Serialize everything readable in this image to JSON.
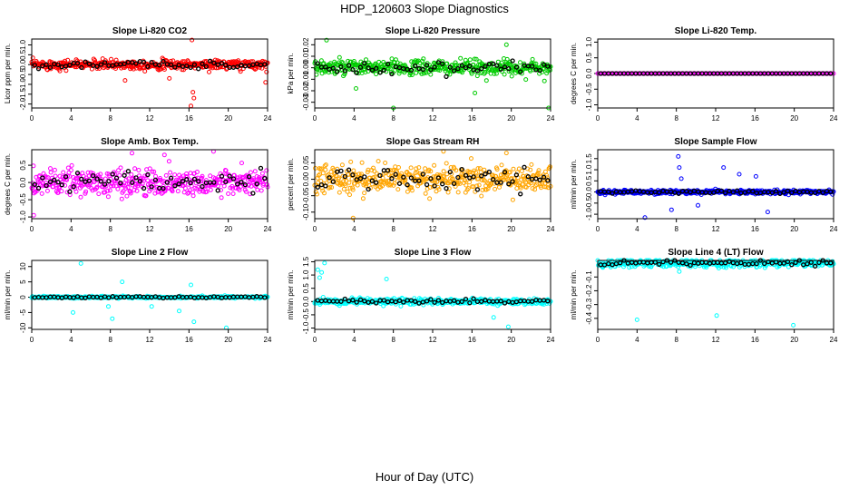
{
  "page": {
    "title": "HDP_120603  Slope Diagnostics",
    "xlabel": "Hour of Day (UTC)"
  },
  "chart_data": [
    {
      "type": "scatter",
      "title": "Slope Li-820 CO2",
      "ylabel": "Licor ppm per min.",
      "color": "#ff0000",
      "xlim": [
        0,
        24
      ],
      "ylim": [
        -2.2,
        1.3
      ],
      "yticks": [
        "-2.0",
        "-1.5",
        "-1.0",
        "-0.5",
        "0.0",
        "0.5",
        "1.0"
      ],
      "xticks": [
        "0",
        "4",
        "8",
        "12",
        "16",
        "20",
        "24"
      ],
      "spread": 0.22,
      "outliers": [
        [
          16.2,
          -2.1
        ],
        [
          16.3,
          1.25
        ],
        [
          16.5,
          -1.7
        ],
        [
          16.4,
          -1.4
        ],
        [
          9.5,
          -0.8
        ],
        [
          14,
          -0.7
        ],
        [
          23.8,
          -0.9
        ]
      ]
    },
    {
      "type": "scatter",
      "title": "Slope Li-820 Pressure",
      "ylabel": "kPa per min.",
      "color": "#00cc00",
      "xlim": [
        0,
        24
      ],
      "ylim": [
        -0.035,
        0.025
      ],
      "yticks": [
        "-0.03",
        "-0.02",
        "-0.01",
        "0.00",
        "0.01",
        "0.02"
      ],
      "xticks": [
        "0",
        "4",
        "8",
        "12",
        "16",
        "20",
        "24"
      ],
      "spread": 0.006,
      "outliers": [
        [
          1.2,
          0.024
        ],
        [
          16.3,
          -0.022
        ],
        [
          8,
          -0.035
        ],
        [
          23.8,
          -0.036
        ],
        [
          4.2,
          -0.018
        ],
        [
          19.5,
          0.02
        ]
      ]
    },
    {
      "type": "scatter",
      "title": "Slope Li-820 Temp.",
      "ylabel": "degrees C per min.",
      "color": "#ff00ff",
      "xlim": [
        0,
        24
      ],
      "ylim": [
        -1.1,
        1.1
      ],
      "yticks": [
        "-1.0",
        "-0.5",
        "0.0",
        "0.5",
        "1.0"
      ],
      "xticks": [
        "0",
        "4",
        "8",
        "12",
        "16",
        "20",
        "24"
      ],
      "spread": 0.0,
      "outliers": []
    },
    {
      "type": "scatter",
      "title": "Slope Amb. Box Temp.",
      "ylabel": "degrees C per min.",
      "color": "#ff00ff",
      "xlim": [
        0,
        24
      ],
      "ylim": [
        -1.05,
        0.95
      ],
      "yticks": [
        "-1.0",
        "-0.5",
        "0.0",
        "0.5"
      ],
      "xticks": [
        "0",
        "4",
        "8",
        "12",
        "16",
        "20",
        "24"
      ],
      "spread": 0.35,
      "outliers": [
        [
          10.2,
          0.85
        ],
        [
          0.2,
          -0.95
        ],
        [
          18.5,
          0.9
        ],
        [
          13.5,
          0.8
        ]
      ]
    },
    {
      "type": "scatter",
      "title": "Slope Gas Stream RH",
      "ylabel": "percent per min.",
      "color": "#ffa500",
      "xlim": [
        0,
        24
      ],
      "ylim": [
        -0.12,
        0.09
      ],
      "yticks": [
        "-0.10",
        "-0.05",
        "0.00",
        "0.05"
      ],
      "xticks": [
        "0",
        "4",
        "8",
        "12",
        "16",
        "20",
        "24"
      ],
      "spread": 0.04,
      "outliers": [
        [
          3.9,
          -0.118
        ],
        [
          13.1,
          0.085
        ],
        [
          19.5,
          0.08
        ]
      ]
    },
    {
      "type": "scatter",
      "title": "Slope Sample Flow",
      "ylabel": "ml/min per min.",
      "color": "#0000ff",
      "xlim": [
        0,
        24
      ],
      "ylim": [
        -1.2,
        1.9
      ],
      "yticks": [
        "-1.0",
        "-0.5",
        "0.0",
        "0.5",
        "1.0",
        "1.5"
      ],
      "xticks": [
        "0",
        "4",
        "8",
        "12",
        "16",
        "20",
        "24"
      ],
      "spread": 0.08,
      "outliers": [
        [
          8.2,
          1.6
        ],
        [
          8.3,
          1.1
        ],
        [
          12.8,
          1.1
        ],
        [
          14.4,
          0.8
        ],
        [
          17.3,
          -0.9
        ],
        [
          4.8,
          -1.15
        ],
        [
          7.5,
          -0.8
        ],
        [
          10.2,
          -0.6
        ],
        [
          8.5,
          0.6
        ],
        [
          16.1,
          0.7
        ]
      ]
    },
    {
      "type": "scatter",
      "title": "Slope Line 2 Flow",
      "ylabel": "ml/min per min.",
      "color": "#00ffff",
      "xlim": [
        0,
        24
      ],
      "ylim": [
        -10.5,
        12
      ],
      "yticks": [
        "-10",
        "-5",
        "0",
        "5",
        "10"
      ],
      "xticks": [
        "0",
        "4",
        "8",
        "12",
        "16",
        "20",
        "24"
      ],
      "spread": 0.3,
      "outliers": [
        [
          5,
          11
        ],
        [
          19.8,
          -10
        ],
        [
          8.2,
          -7
        ],
        [
          16.5,
          -8
        ],
        [
          4.2,
          -5
        ],
        [
          9.2,
          5
        ],
        [
          7.8,
          -3
        ],
        [
          15,
          -4.5
        ],
        [
          16.2,
          4
        ],
        [
          12.2,
          -3
        ]
      ]
    },
    {
      "type": "scatter",
      "title": "Slope Line 3 Flow",
      "ylabel": "ml/min per min.",
      "color": "#00ffff",
      "xlim": [
        0,
        24
      ],
      "ylim": [
        -1.05,
        1.55
      ],
      "yticks": [
        "-1.0",
        "-0.5",
        "0.0",
        "0.5",
        "1.0",
        "1.5"
      ],
      "xticks": [
        "0",
        "4",
        "8",
        "12",
        "16",
        "20",
        "24"
      ],
      "spread": 0.1,
      "outliers": [
        [
          0.3,
          1.2
        ],
        [
          0.7,
          1.1
        ],
        [
          1.0,
          1.45
        ],
        [
          0.5,
          0.9
        ],
        [
          19.7,
          -0.95
        ],
        [
          7.3,
          0.85
        ],
        [
          18.2,
          -0.6
        ]
      ]
    },
    {
      "type": "scatter",
      "title": "Slope Line 4 (LT) Flow",
      "ylabel": "ml/min per min.",
      "color": "#00ffff",
      "xlim": [
        0,
        24
      ],
      "ylim": [
        -0.48,
        0.02
      ],
      "yticks": [
        "-0.4",
        "-0.3",
        "-0.2",
        "-0.1"
      ],
      "xticks": [
        "0",
        "4",
        "8",
        "12",
        "16",
        "20",
        "24"
      ],
      "spread": 0.025,
      "outliers": [
        [
          4.0,
          -0.41
        ],
        [
          12.1,
          -0.38
        ],
        [
          19.9,
          -0.45
        ],
        [
          5.0,
          -0.01
        ],
        [
          8.3,
          -0.06
        ]
      ]
    }
  ]
}
